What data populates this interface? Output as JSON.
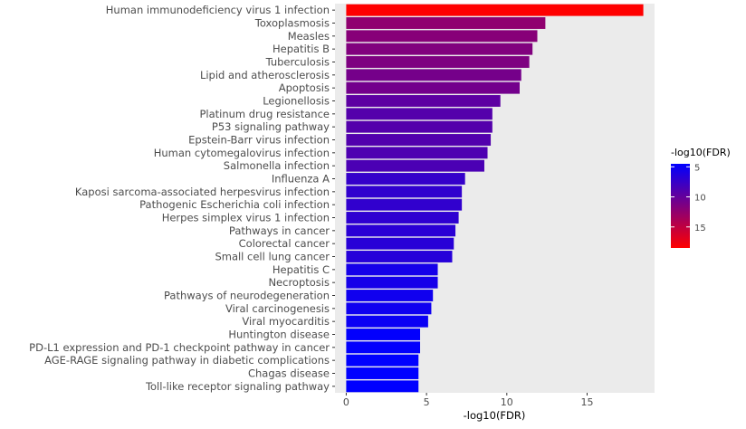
{
  "chart_data": {
    "type": "bar",
    "orientation": "horizontal",
    "categories": [
      "Human immunodeficiency virus 1 infection",
      "Toxoplasmosis",
      "Measles",
      "Hepatitis B",
      "Tuberculosis",
      "Lipid and atherosclerosis",
      "Apoptosis",
      "Legionellosis",
      "Platinum drug resistance",
      "P53 signaling pathway",
      "Epstein-Barr virus infection",
      "Human cytomegalovirus infection",
      "Salmonella infection",
      "Influenza A",
      "Kaposi sarcoma-associated herpesvirus infection",
      "Pathogenic Escherichia coli infection",
      "Herpes simplex virus 1 infection",
      "Pathways in cancer",
      "Colorectal cancer",
      "Small cell lung cancer",
      "Hepatitis C",
      "Necroptosis",
      "Pathways of neurodegeneration",
      "Viral carcinogenesis",
      "Viral myocarditis",
      "Huntington disease",
      "PD-L1 expression and PD-1 checkpoint pathway in cancer",
      "AGE-RAGE signaling pathway in diabetic complications",
      "Chagas disease",
      "Toll-like receptor signaling pathway"
    ],
    "values": [
      18.5,
      12.4,
      11.9,
      11.6,
      11.4,
      10.9,
      10.8,
      9.6,
      9.1,
      9.1,
      9.0,
      8.8,
      8.6,
      7.4,
      7.2,
      7.2,
      7.0,
      6.8,
      6.7,
      6.6,
      5.7,
      5.7,
      5.4,
      5.3,
      5.1,
      4.6,
      4.6,
      4.5,
      4.5,
      4.5
    ],
    "xlabel": "-log10(FDR)",
    "ylabel": "",
    "xlim": [
      -0.7,
      19.2
    ],
    "xticks": [
      0,
      5,
      10,
      15
    ],
    "grid": false,
    "panel_background": "#ebebeb",
    "legend": {
      "title": "-log10(FDR)",
      "position": "right",
      "ticks": [
        5,
        10,
        15
      ],
      "range": [
        4.5,
        18.5
      ],
      "color_low": "#0000ff",
      "color_high": "#ff0000"
    }
  }
}
